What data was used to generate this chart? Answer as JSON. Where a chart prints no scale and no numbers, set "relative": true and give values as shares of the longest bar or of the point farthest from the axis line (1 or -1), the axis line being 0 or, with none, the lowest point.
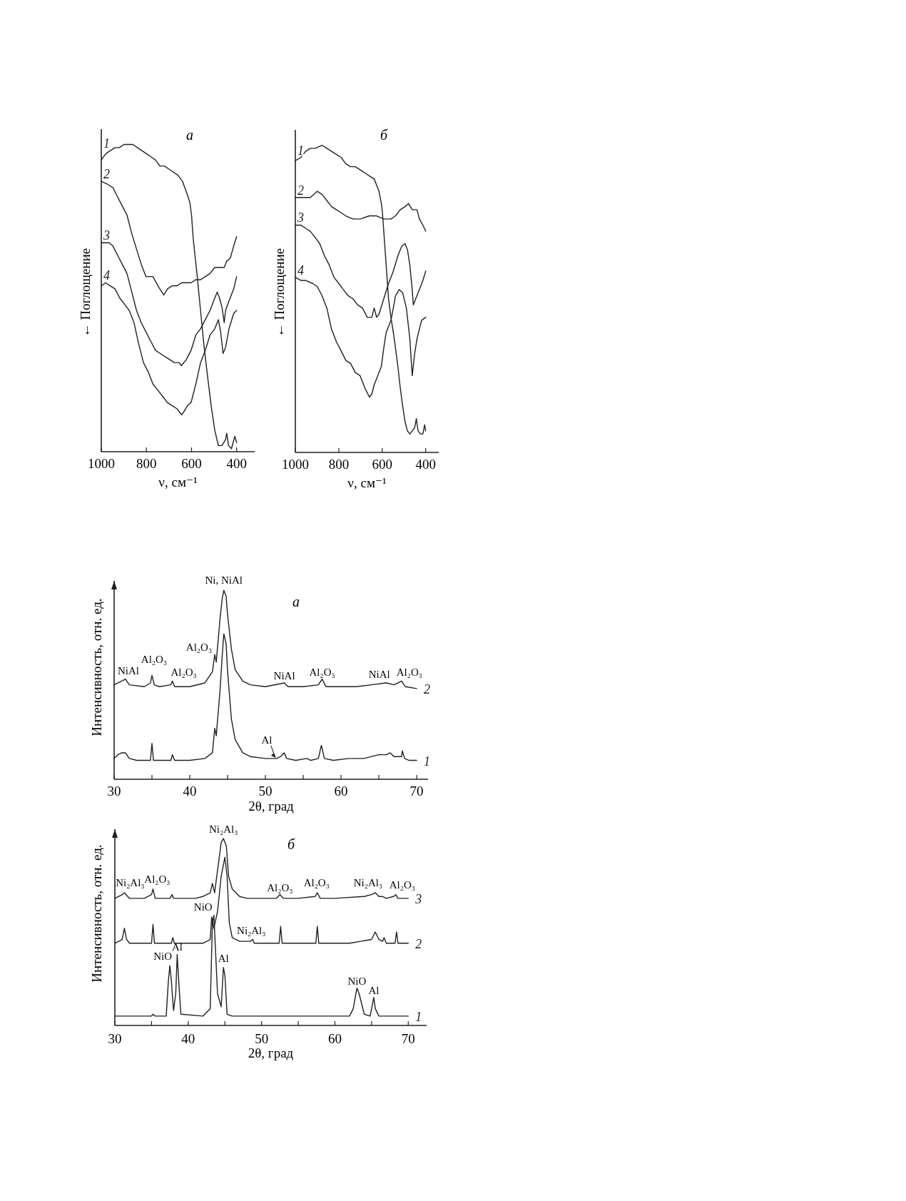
{
  "chart_data": [
    {
      "type": "line",
      "title": "а",
      "xlabel": "ν, см⁻¹",
      "ylabel": "← Поглощение",
      "relative": true,
      "tick_labels": "x",
      "xlim": [
        1000,
        320
      ],
      "xticks": [
        1000,
        800,
        600,
        400
      ],
      "series": [
        {
          "name": "1",
          "color": "#231f20",
          "x": [
            1000,
            980,
            960,
            940,
            920,
            900,
            880,
            860,
            840,
            820,
            800,
            780,
            760,
            740,
            720,
            700,
            680,
            660,
            640,
            620,
            607,
            600,
            592,
            576,
            560,
            544,
            528,
            513,
            497,
            481,
            465,
            449,
            444,
            436,
            423,
            408,
            400
          ],
          "values": [
            0.95,
            0.97,
            0.98,
            0.99,
            0.99,
            1.0,
            1.0,
            1.0,
            0.99,
            0.98,
            0.97,
            0.96,
            0.95,
            0.93,
            0.93,
            0.92,
            0.91,
            0.9,
            0.88,
            0.84,
            0.81,
            0.77,
            0.69,
            0.58,
            0.46,
            0.34,
            0.24,
            0.15,
            0.07,
            0.02,
            0.02,
            0.04,
            0.06,
            0.02,
            0.01,
            0.05,
            0.03
          ]
        },
        {
          "name": "2",
          "color": "#231f20",
          "x": [
            1000,
            971,
            949,
            928,
            907,
            886,
            865,
            844,
            823,
            802,
            771,
            749,
            723,
            707,
            686,
            665,
            644,
            623,
            602,
            581,
            560,
            539,
            518,
            497,
            476,
            455,
            444,
            428,
            413,
            400
          ],
          "values": [
            0.88,
            0.87,
            0.86,
            0.83,
            0.8,
            0.77,
            0.71,
            0.66,
            0.61,
            0.57,
            0.57,
            0.54,
            0.51,
            0.53,
            0.54,
            0.54,
            0.55,
            0.55,
            0.55,
            0.56,
            0.56,
            0.57,
            0.58,
            0.6,
            0.6,
            0.6,
            0.62,
            0.63,
            0.67,
            0.7
          ]
        },
        {
          "name": "3",
          "color": "#231f20",
          "x": [
            1000,
            981,
            965,
            949,
            928,
            907,
            886,
            865,
            844,
            823,
            802,
            781,
            760,
            739,
            718,
            697,
            676,
            655,
            645,
            623,
            602,
            581,
            560,
            539,
            518,
            497,
            486,
            476,
            465,
            455,
            449,
            434,
            413,
            400
          ],
          "values": [
            0.68,
            0.68,
            0.68,
            0.67,
            0.64,
            0.61,
            0.58,
            0.52,
            0.46,
            0.42,
            0.39,
            0.36,
            0.33,
            0.32,
            0.31,
            0.3,
            0.29,
            0.29,
            0.28,
            0.3,
            0.33,
            0.38,
            0.4,
            0.43,
            0.46,
            0.5,
            0.52,
            0.5,
            0.47,
            0.42,
            0.46,
            0.49,
            0.53,
            0.57
          ]
        },
        {
          "name": "4",
          "color": "#231f20",
          "x": [
            1000,
            981,
            960,
            939,
            918,
            897,
            876,
            855,
            834,
            813,
            792,
            771,
            749,
            728,
            707,
            686,
            665,
            644,
            634,
            618,
            602,
            581,
            560,
            539,
            518,
            497,
            481,
            471,
            460,
            449,
            434,
            413,
            400
          ],
          "values": [
            0.54,
            0.55,
            0.54,
            0.53,
            0.5,
            0.48,
            0.46,
            0.42,
            0.35,
            0.29,
            0.26,
            0.22,
            0.2,
            0.18,
            0.16,
            0.15,
            0.14,
            0.12,
            0.13,
            0.15,
            0.16,
            0.22,
            0.29,
            0.33,
            0.38,
            0.4,
            0.43,
            0.39,
            0.32,
            0.34,
            0.4,
            0.45,
            0.46
          ]
        }
      ]
    },
    {
      "type": "line",
      "title": "б",
      "xlabel": "ν, см⁻¹",
      "ylabel": "← Поглощение",
      "relative": true,
      "tick_labels": "x",
      "xlim": [
        1000,
        340
      ],
      "xticks": [
        1000,
        800,
        600,
        400
      ],
      "series": [
        {
          "name": "1",
          "color": "#231f20",
          "x": [
            1000,
            975,
            953,
            931,
            909,
            877,
            855,
            833,
            811,
            789,
            768,
            746,
            724,
            702,
            680,
            659,
            637,
            626,
            615,
            604,
            599,
            593,
            582,
            571,
            560,
            549,
            539,
            528,
            517,
            506,
            495,
            484,
            473,
            462,
            451,
            443,
            435,
            424,
            413,
            405,
            400
          ],
          "values": [
            0.95,
            0.96,
            0.98,
            0.99,
            0.99,
            1.0,
            0.99,
            0.98,
            0.97,
            0.96,
            0.94,
            0.93,
            0.93,
            0.92,
            0.91,
            0.9,
            0.89,
            0.87,
            0.85,
            0.81,
            0.78,
            0.72,
            0.61,
            0.5,
            0.44,
            0.39,
            0.34,
            0.28,
            0.21,
            0.15,
            0.1,
            0.07,
            0.06,
            0.07,
            0.08,
            0.11,
            0.07,
            0.06,
            0.06,
            0.09,
            0.07
          ]
        },
        {
          "name": "2",
          "color": "#231f20",
          "x": [
            1000,
            975,
            953,
            931,
            899,
            877,
            855,
            833,
            811,
            789,
            768,
            735,
            702,
            659,
            626,
            593,
            560,
            539,
            517,
            495,
            479,
            462,
            440,
            429,
            413,
            400
          ],
          "values": [
            0.83,
            0.83,
            0.83,
            0.83,
            0.85,
            0.84,
            0.82,
            0.8,
            0.79,
            0.78,
            0.77,
            0.76,
            0.76,
            0.77,
            0.77,
            0.76,
            0.76,
            0.77,
            0.79,
            0.8,
            0.81,
            0.79,
            0.79,
            0.76,
            0.74,
            0.72
          ]
        },
        {
          "name": "3",
          "color": "#231f20",
          "x": [
            1000,
            975,
            953,
            931,
            909,
            888,
            866,
            844,
            822,
            800,
            779,
            757,
            735,
            713,
            691,
            669,
            648,
            637,
            626,
            615,
            593,
            571,
            549,
            528,
            511,
            495,
            484,
            473,
            462,
            457,
            446,
            429,
            413,
            400
          ],
          "values": [
            0.74,
            0.74,
            0.73,
            0.72,
            0.7,
            0.68,
            0.64,
            0.61,
            0.57,
            0.55,
            0.53,
            0.51,
            0.5,
            0.48,
            0.47,
            0.44,
            0.44,
            0.47,
            0.44,
            0.45,
            0.5,
            0.55,
            0.59,
            0.64,
            0.67,
            0.68,
            0.66,
            0.61,
            0.53,
            0.48,
            0.5,
            0.53,
            0.56,
            0.59
          ]
        },
        {
          "name": "4",
          "color": "#231f20",
          "x": [
            1000,
            975,
            953,
            920,
            899,
            877,
            855,
            833,
            811,
            789,
            768,
            746,
            724,
            702,
            680,
            659,
            648,
            637,
            626,
            615,
            604,
            593,
            582,
            571,
            560,
            549,
            539,
            522,
            506,
            489,
            473,
            462,
            451,
            440,
            419,
            400
          ],
          "values": [
            0.57,
            0.56,
            0.56,
            0.55,
            0.54,
            0.51,
            0.47,
            0.4,
            0.36,
            0.33,
            0.3,
            0.29,
            0.26,
            0.25,
            0.21,
            0.18,
            0.19,
            0.22,
            0.24,
            0.26,
            0.28,
            0.34,
            0.39,
            0.41,
            0.43,
            0.47,
            0.51,
            0.53,
            0.52,
            0.47,
            0.37,
            0.25,
            0.32,
            0.37,
            0.43,
            0.44
          ]
        }
      ]
    },
    {
      "type": "line",
      "title": "а",
      "xlabel": "2θ, град",
      "ylabel": "Интенсивность, отн. ед.",
      "relative": true,
      "tick_labels": "x",
      "xlim": [
        30,
        71.5
      ],
      "xticks": [
        30,
        {
          "value": 35,
          "label": null
        },
        40,
        {
          "value": 45,
          "label": null
        },
        50,
        {
          "value": 55,
          "label": null
        },
        60,
        {
          "value": 65,
          "label": null
        },
        70
      ],
      "series": [
        {
          "name": "1",
          "color": "#231f20",
          "x": [
            30,
            30.5,
            31,
            31.5,
            32,
            33,
            34,
            34.8,
            35,
            35.2,
            36,
            37.5,
            37.7,
            38,
            40,
            42,
            43,
            43.3,
            43.5,
            44,
            44.3,
            44.5,
            44.8,
            45,
            45.5,
            46,
            47,
            48,
            50,
            51.5,
            52,
            52.5,
            52.8,
            54,
            55.5,
            56,
            57,
            57.4,
            57.8,
            59,
            61,
            63,
            65,
            66,
            66.5,
            67,
            68,
            68.1,
            68.4,
            69,
            70
          ],
          "values": [
            0.11,
            0.13,
            0.14,
            0.14,
            0.11,
            0.1,
            0.1,
            0.1,
            0.19,
            0.1,
            0.1,
            0.1,
            0.13,
            0.1,
            0.1,
            0.11,
            0.14,
            0.27,
            0.23,
            0.47,
            0.66,
            0.77,
            0.72,
            0.57,
            0.32,
            0.21,
            0.14,
            0.12,
            0.11,
            0.11,
            0.12,
            0.14,
            0.11,
            0.1,
            0.11,
            0.1,
            0.11,
            0.18,
            0.11,
            0.1,
            0.11,
            0.11,
            0.13,
            0.13,
            0.14,
            0.12,
            0.12,
            0.15,
            0.11,
            0.1,
            0.1
          ]
        },
        {
          "name": "2",
          "color": "#231f20",
          "x": [
            30,
            31,
            31.5,
            32,
            34,
            34.8,
            35,
            35.3,
            36,
            37.5,
            37.7,
            38,
            40,
            42,
            43,
            43.3,
            43.5,
            44,
            44.3,
            44.5,
            44.8,
            45,
            45.5,
            46,
            47,
            48,
            50,
            52.5,
            53,
            55,
            57,
            57.5,
            58,
            60,
            62,
            64,
            66,
            67,
            68,
            68.5,
            70
          ],
          "values": [
            0.5,
            0.52,
            0.53,
            0.5,
            0.49,
            0.51,
            0.55,
            0.5,
            0.49,
            0.5,
            0.52,
            0.49,
            0.49,
            0.51,
            0.57,
            0.66,
            0.62,
            0.85,
            0.96,
            1.0,
            0.97,
            0.87,
            0.69,
            0.58,
            0.52,
            0.5,
            0.49,
            0.51,
            0.49,
            0.49,
            0.5,
            0.53,
            0.49,
            0.49,
            0.49,
            0.5,
            0.51,
            0.5,
            0.52,
            0.49,
            0.48
          ]
        }
      ],
      "annotations": [
        {
          "text": "Ni, NiAl",
          "x": 44.5,
          "y": 1.0
        },
        {
          "text": "Al₂O₃",
          "x": 43.3,
          "y": 0.66
        },
        {
          "text": "NiAl",
          "x": 31.5,
          "y": 0.53
        },
        {
          "text": "Al₂O₃",
          "x": 35,
          "y": 0.55
        },
        {
          "text": "Al₂O₃",
          "x": 37.7,
          "y": 0.52
        },
        {
          "text": "NiAl",
          "x": 52.5,
          "y": 0.51
        },
        {
          "text": "Al₂O₃",
          "x": 57.5,
          "y": 0.53
        },
        {
          "text": "NiAl",
          "x": 66,
          "y": 0.51
        },
        {
          "text": "Al₂O₃",
          "x": 68,
          "y": 0.52
        },
        {
          "text": "Al",
          "x": 51.5,
          "y": 0.11
        }
      ]
    },
    {
      "type": "line",
      "title": "б",
      "xlabel": "2θ, град",
      "ylabel": "Интенсивность, отн. ед.",
      "relative": true,
      "tick_labels": "x",
      "xlim": [
        30,
        72.5
      ],
      "xticks": [
        30,
        {
          "value": 35,
          "label": null
        },
        40,
        {
          "value": 45,
          "label": null
        },
        50,
        {
          "value": 55,
          "label": null
        },
        60,
        {
          "value": 65,
          "label": null
        },
        70
      ],
      "series": [
        {
          "name": "1",
          "color": "#231f20",
          "x": [
            30,
            35,
            35.2,
            35.5,
            37,
            37.3,
            37.5,
            37.7,
            38,
            38.3,
            38.5,
            38.7,
            39,
            42,
            43,
            43.3,
            43.5,
            43.7,
            44,
            44.5,
            44.8,
            45,
            45.3,
            46,
            55,
            58,
            62,
            62.5,
            63,
            63.3,
            64,
            64.8,
            65,
            65.3,
            65.5,
            66,
            70
          ],
          "values": [
            0.05,
            0.05,
            0.06,
            0.05,
            0.05,
            0.24,
            0.32,
            0.24,
            0.08,
            0.17,
            0.38,
            0.24,
            0.06,
            0.05,
            0.09,
            0.55,
            0.59,
            0.42,
            0.17,
            0.1,
            0.31,
            0.27,
            0.06,
            0.05,
            0.05,
            0.05,
            0.05,
            0.09,
            0.2,
            0.17,
            0.06,
            0.05,
            0.09,
            0.15,
            0.09,
            0.05,
            0.05
          ]
        },
        {
          "name": "2",
          "color": "#231f20",
          "x": [
            30,
            31,
            31.3,
            31.6,
            32,
            35,
            35.2,
            35.4,
            37.7,
            37.9,
            38.1,
            42,
            43,
            43.2,
            43.5,
            44,
            44.5,
            45,
            45.3,
            45.6,
            46,
            47,
            48.5,
            48.8,
            49,
            52.4,
            52.6,
            52.8,
            55,
            57.4,
            57.6,
            57.8,
            62,
            65,
            65.5,
            66,
            66.5,
            66.7,
            67,
            68.2,
            68.4,
            68.6,
            70
          ],
          "values": [
            0.44,
            0.46,
            0.52,
            0.46,
            0.44,
            0.44,
            0.54,
            0.44,
            0.44,
            0.47,
            0.44,
            0.44,
            0.46,
            0.58,
            0.52,
            0.61,
            0.8,
            0.9,
            0.8,
            0.55,
            0.47,
            0.45,
            0.45,
            0.46,
            0.44,
            0.44,
            0.53,
            0.44,
            0.44,
            0.44,
            0.53,
            0.44,
            0.44,
            0.46,
            0.5,
            0.46,
            0.45,
            0.47,
            0.44,
            0.44,
            0.5,
            0.44,
            0.44
          ]
        },
        {
          "name": "3",
          "color": "#231f20",
          "x": [
            30,
            31,
            31.3,
            32,
            34,
            35,
            35.2,
            35.5,
            37.5,
            37.8,
            38,
            41,
            42,
            43,
            43.3,
            43.6,
            44,
            44.5,
            44.8,
            45.2,
            45.5,
            46,
            47,
            48,
            50,
            52,
            52.5,
            53,
            55,
            57.3,
            57.6,
            58,
            60,
            64,
            65,
            65.5,
            66,
            66.5,
            67,
            68,
            68.3,
            68.6,
            70
          ],
          "values": [
            0.68,
            0.7,
            0.71,
            0.68,
            0.68,
            0.7,
            0.73,
            0.68,
            0.68,
            0.7,
            0.68,
            0.68,
            0.69,
            0.71,
            0.76,
            0.71,
            0.83,
            0.98,
            1.0,
            0.96,
            0.8,
            0.73,
            0.69,
            0.68,
            0.68,
            0.68,
            0.7,
            0.68,
            0.68,
            0.69,
            0.71,
            0.68,
            0.68,
            0.69,
            0.7,
            0.71,
            0.69,
            0.69,
            0.68,
            0.69,
            0.7,
            0.68,
            0.68
          ]
        }
      ],
      "annotations": [
        {
          "text": "Ni₂Al₃",
          "x": 44.8,
          "y": 1.0
        },
        {
          "text": "Ni₂Al₃",
          "x": 31.3,
          "y": 0.71
        },
        {
          "text": "Al₂O₃",
          "x": 35.2,
          "y": 0.73
        },
        {
          "text": "NiO",
          "x": 43.2,
          "y": 0.58
        },
        {
          "text": "Ni₂Al₃",
          "x": 48.8,
          "y": 0.46
        },
        {
          "text": "Al₂O₃",
          "x": 52.5,
          "y": 0.7
        },
        {
          "text": "Al₂O₃",
          "x": 57.6,
          "y": 0.71
        },
        {
          "text": "Ni₂Al₃",
          "x": 65.5,
          "y": 0.71
        },
        {
          "text": "Al₂O₃",
          "x": 68.3,
          "y": 0.7
        },
        {
          "text": "NiO",
          "x": 37.5,
          "y": 0.32
        },
        {
          "text": "Al",
          "x": 38.5,
          "y": 0.38
        },
        {
          "text": "Al",
          "x": 44.8,
          "y": 0.31
        },
        {
          "text": "NiO",
          "x": 63,
          "y": 0.2
        },
        {
          "text": "Al",
          "x": 65.3,
          "y": 0.15
        }
      ]
    }
  ]
}
